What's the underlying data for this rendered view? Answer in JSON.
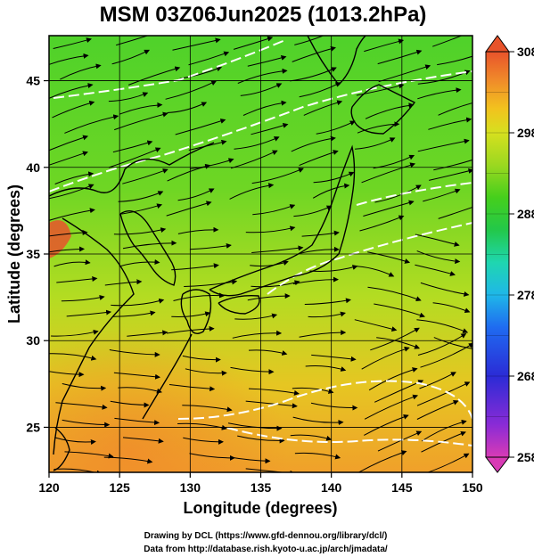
{
  "title": "MSM 03Z06Jun2025 (1013.2hPa)",
  "x_axis": {
    "label": "Longitude (degrees)",
    "min": 120,
    "max": 150,
    "ticks": [
      120,
      125,
      130,
      135,
      140,
      145,
      150
    ]
  },
  "y_axis": {
    "label": "Latitude  (degrees)",
    "min": 22.4,
    "max": 47.6,
    "ticks": [
      25,
      30,
      35,
      40,
      45
    ]
  },
  "colorbar": {
    "min": 258,
    "max": 308,
    "tick_labels": [
      308,
      298,
      288,
      278,
      268,
      258
    ],
    "colors": [
      "#d83bb5",
      "#8a2bd6",
      "#2b2bd6",
      "#1f6bf0",
      "#1fb7e8",
      "#1fd6b0",
      "#23c84a",
      "#45cf1c",
      "#9bd820",
      "#d6e01f",
      "#f2c21e",
      "#f08a2a",
      "#e8532b"
    ]
  },
  "credits": {
    "line1": "Drawing by DCL (https://www.gfd-dennou.org/library/dcl/)",
    "line2": "Data from http://database.rish.kyoto-u.ac.jp/arch/jmadata/"
  }
}
